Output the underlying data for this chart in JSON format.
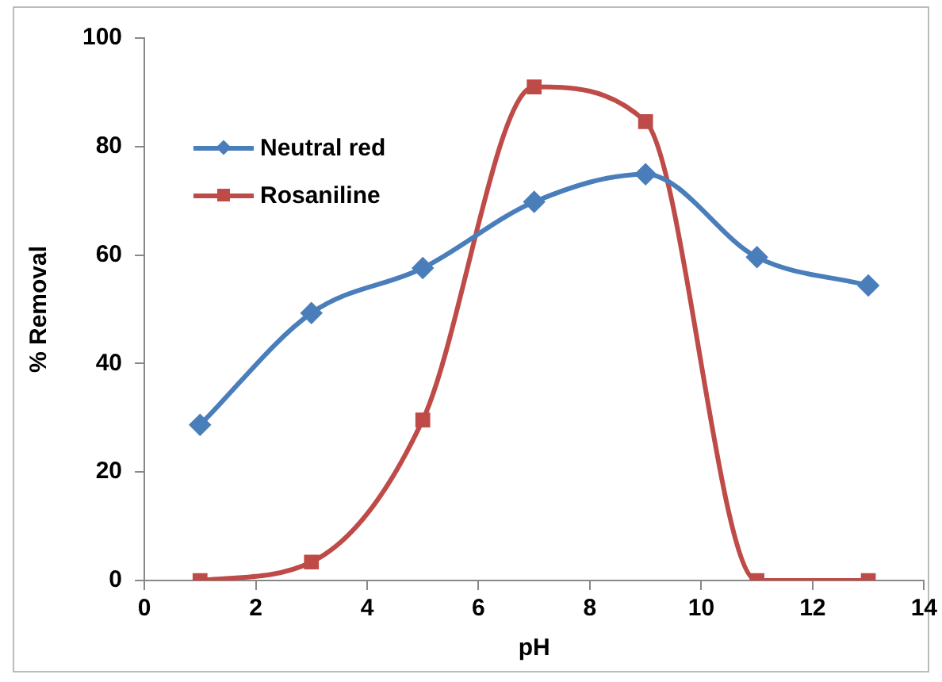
{
  "chart_data": {
    "type": "line",
    "xlabel": "pH",
    "ylabel": "% Removal",
    "x": [
      1,
      3,
      5,
      7,
      9,
      11,
      13
    ],
    "xlim": [
      0,
      14
    ],
    "xticks": [
      0,
      2,
      4,
      6,
      8,
      10,
      12,
      14
    ],
    "ylim": [
      0,
      100
    ],
    "yticks": [
      0,
      20,
      40,
      60,
      80,
      100
    ],
    "grid": false,
    "legend": "top left",
    "series": [
      {
        "name": "Neutral red",
        "color": "#4a7ebb",
        "marker": "diamond",
        "values": [
          28.7,
          49.3,
          57.6,
          69.8,
          74.9,
          59.6,
          54.4
        ]
      },
      {
        "name": "Rosaniline",
        "color": "#be4b48",
        "marker": "square",
        "values": [
          0,
          3.4,
          29.6,
          91.0,
          84.6,
          0,
          0
        ]
      }
    ]
  }
}
